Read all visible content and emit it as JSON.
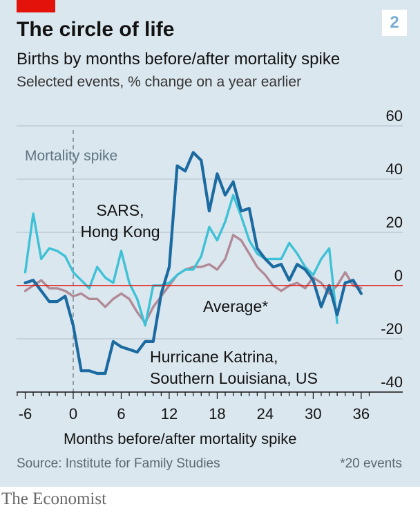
{
  "header": {
    "chart_number": "2",
    "title": "The circle of life",
    "subtitle": "Births by months before/after mortality spike",
    "description": "Selected events, % change on a year earlier"
  },
  "footer": {
    "source": "Source: Institute for Family Studies",
    "footnote": "*20 events",
    "brand": "The Economist"
  },
  "colors": {
    "background": "#dbe7ef",
    "sars": "#3ec1d6",
    "katrina": "#1b6aa0",
    "average": "#b08a96",
    "zero_line": "#e3120b",
    "grid": "#b9c6d0"
  },
  "chart_data": {
    "type": "line",
    "xlabel": "Months before/after mortality spike",
    "ylabel": "",
    "xlim": [
      -7,
      37
    ],
    "ylim": [
      -40,
      60
    ],
    "x_ticks": [
      -6,
      0,
      6,
      12,
      18,
      24,
      30,
      36
    ],
    "x_tick_labels": [
      "-6",
      "0",
      "6",
      "12",
      "18",
      "24",
      "30",
      "36"
    ],
    "y_ticks": [
      -40,
      -20,
      0,
      20,
      40,
      60
    ],
    "y_tick_labels": [
      "-40",
      "-20",
      "0",
      "20",
      "40",
      "60"
    ],
    "grid": "horizontal",
    "annotation": {
      "label": "Mortality spike",
      "x": 0
    },
    "series": [
      {
        "name": "SARS, Hong Kong",
        "label_lines": [
          "SARS,",
          "Hong Kong"
        ],
        "color_key": "sars",
        "x": [
          -6,
          -5,
          -4,
          -3,
          -2,
          -1,
          0,
          1,
          2,
          3,
          4,
          5,
          6,
          7,
          8,
          9,
          10,
          11,
          12,
          13,
          14,
          15,
          16,
          17,
          18,
          19,
          20,
          21,
          22,
          23,
          24,
          25,
          26,
          27,
          28,
          29,
          30,
          31,
          32,
          33
        ],
        "values": [
          5,
          27,
          10,
          14,
          13,
          11,
          5,
          2,
          -1,
          7,
          3,
          1,
          13,
          1,
          -5,
          -15,
          0,
          0,
          1,
          4,
          6,
          6,
          11,
          22,
          17,
          24,
          34,
          26,
          17,
          12,
          10,
          10,
          10,
          16,
          12,
          7,
          4,
          10,
          14,
          -14
        ]
      },
      {
        "name": "Hurricane Katrina, Southern Louisiana, US",
        "label_lines": [
          "Hurricane Katrina,",
          "Southern Louisiana, US"
        ],
        "color_key": "katrina",
        "x": [
          -6,
          -5,
          -4,
          -3,
          -2,
          -1,
          0,
          1,
          2,
          3,
          4,
          5,
          6,
          7,
          8,
          9,
          10,
          11,
          12,
          13,
          14,
          15,
          16,
          17,
          18,
          19,
          20,
          21,
          22,
          23,
          24,
          25,
          26,
          27,
          28,
          29,
          30,
          31,
          32,
          33,
          34,
          35,
          36
        ],
        "values": [
          1,
          2,
          -2,
          -6,
          -6,
          -4,
          -15,
          -32,
          -32,
          -33,
          -33,
          -21,
          -23,
          -24,
          -25,
          -21,
          -21,
          -3,
          7,
          45,
          43,
          50,
          47,
          28,
          42,
          34,
          39,
          28,
          29,
          14,
          10,
          7,
          8,
          2,
          8,
          6,
          2,
          -8,
          0,
          -11,
          1,
          2,
          -3
        ]
      },
      {
        "name": "Average*",
        "label_lines": [
          "Average*"
        ],
        "color_key": "average",
        "x": [
          -6,
          -5,
          -4,
          -3,
          -2,
          -1,
          0,
          1,
          2,
          3,
          4,
          5,
          6,
          7,
          8,
          9,
          10,
          11,
          12,
          13,
          14,
          15,
          16,
          17,
          18,
          19,
          20,
          21,
          22,
          23,
          24,
          25,
          26,
          27,
          28,
          29,
          30,
          31,
          32,
          33,
          34,
          35,
          36
        ],
        "values": [
          -2,
          0,
          2,
          -1,
          -1,
          -2,
          -4,
          -3,
          -5,
          -5,
          -8,
          -5,
          -3,
          -5,
          -10,
          -14,
          -8,
          -4,
          0,
          4,
          6,
          7,
          7,
          8,
          6,
          10,
          19,
          17,
          12,
          7,
          4,
          0,
          -2,
          0,
          1,
          -1,
          3,
          1,
          -3,
          0,
          5,
          0,
          -1
        ]
      }
    ]
  }
}
